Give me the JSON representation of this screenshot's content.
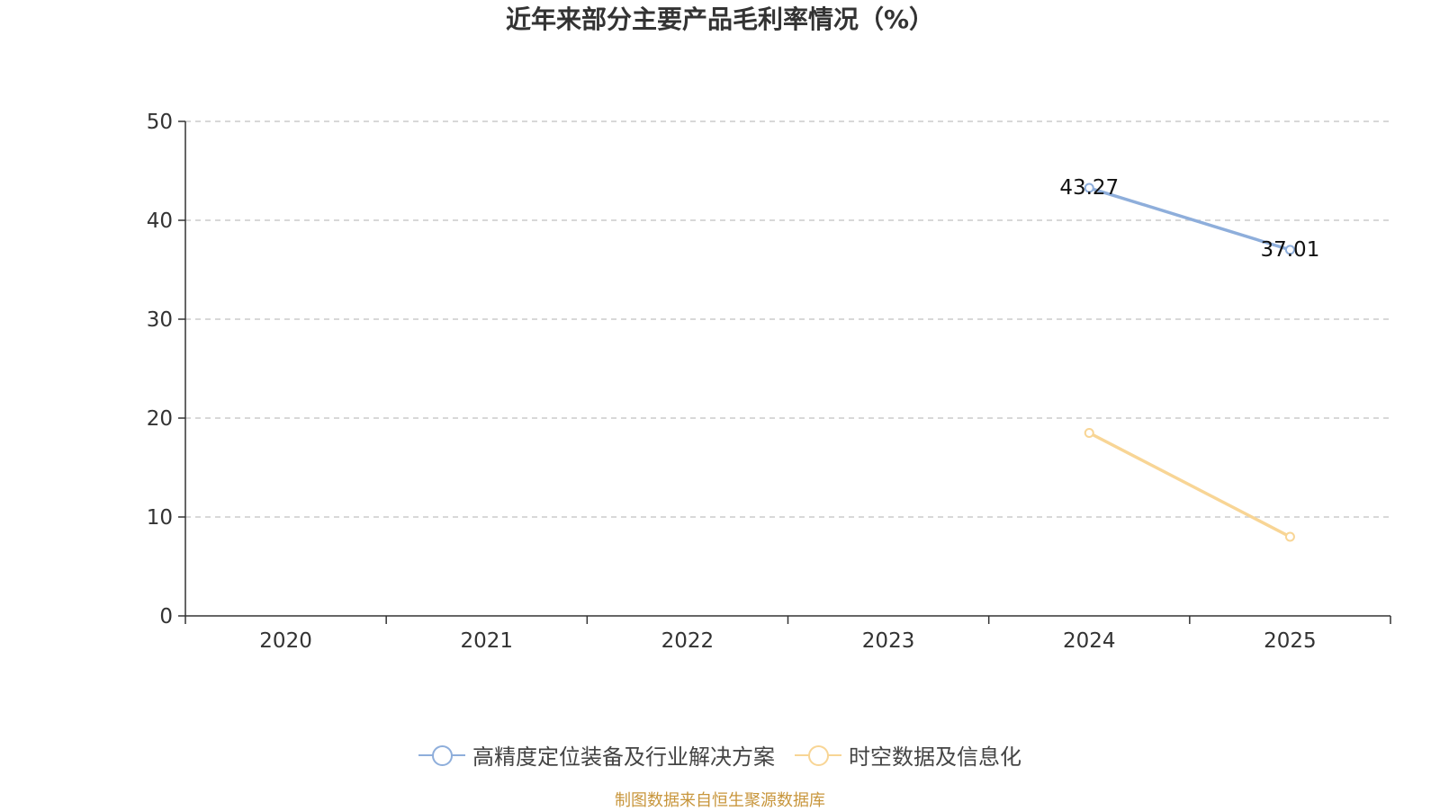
{
  "chart_data": {
    "type": "line",
    "title": "近年来部分主要产品毛利率情况（%）",
    "categories": [
      "2020",
      "2021",
      "2022",
      "2023",
      "2024",
      "2025"
    ],
    "ylim": [
      0,
      50
    ],
    "yticks": [
      0,
      10,
      20,
      30,
      40,
      50
    ],
    "grid": true,
    "legend_position": "bottom",
    "series": [
      {
        "name": "高精度定位装备及行业解决方案",
        "color": "#8eaedb",
        "values": [
          null,
          null,
          null,
          null,
          43.27,
          37.01
        ],
        "data_labels": [
          null,
          null,
          null,
          null,
          "43.27",
          "37.01"
        ]
      },
      {
        "name": "时空数据及信息化",
        "color": "#f8d595",
        "values": [
          null,
          null,
          null,
          null,
          18.5,
          8.0
        ],
        "data_labels": [
          null,
          null,
          null,
          null,
          null,
          null
        ]
      }
    ]
  },
  "footer": {
    "source": "制图数据来自恒生聚源数据库"
  }
}
